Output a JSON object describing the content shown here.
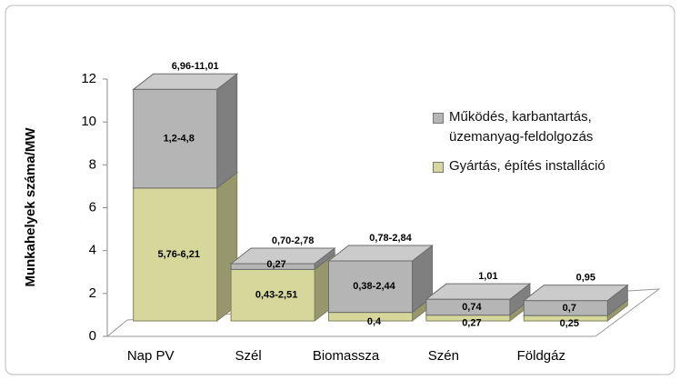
{
  "chart_data": {
    "type": "bar",
    "stacked": true,
    "y_label": "Munkahelyek száma/MW",
    "categories": [
      "Nap PV",
      "Szél",
      "Biomassza",
      "Szén",
      "Földgáz"
    ],
    "series": [
      {
        "name": "Gyártás, építés installáció",
        "color": "#d6d79b",
        "values": [
          6.2,
          2.4,
          0.4,
          0.27,
          0.25
        ],
        "value_labels": [
          "5,76-6,21",
          "0,43-2,51",
          "0,4",
          "0,27",
          "0,25"
        ]
      },
      {
        "name": "Működés, karbantartás, üzemanyag-feldolgozás",
        "color": "#b5b5b5",
        "values": [
          4.6,
          0.27,
          2.4,
          0.74,
          0.7
        ],
        "value_labels": [
          "1,2-4,8",
          "0,27",
          "0,38-2,44",
          "0,74",
          "0,7"
        ]
      }
    ],
    "total_labels": [
      "6,96-11,01",
      "0,70-2,78",
      "0,78-2,84",
      "1,01",
      "0,95"
    ],
    "ylim": [
      0,
      12
    ],
    "yticks": [
      0,
      2,
      4,
      6,
      8,
      10,
      12
    ],
    "legend": "right"
  }
}
